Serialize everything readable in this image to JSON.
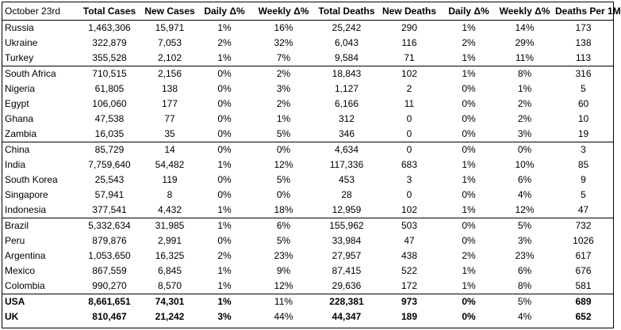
{
  "table": {
    "headers": [
      "October 23rd",
      "Total Cases",
      "New Cases",
      "Daily Δ%",
      "Weekly Δ%",
      "Total Deaths",
      "New Deaths",
      "Daily Δ%",
      "Weekly Δ%",
      "Deaths Per 1M"
    ],
    "groups": [
      [
        [
          "Russia",
          "1,463,306",
          "15,971",
          "1%",
          "16%",
          "25,242",
          "290",
          "1%",
          "14%",
          "173"
        ],
        [
          "Ukraine",
          "322,879",
          "7,053",
          "2%",
          "32%",
          "6,043",
          "116",
          "2%",
          "29%",
          "138"
        ],
        [
          "Turkey",
          "355,528",
          "2,102",
          "1%",
          "7%",
          "9,584",
          "71",
          "1%",
          "11%",
          "113"
        ]
      ],
      [
        [
          "South Africa",
          "710,515",
          "2,156",
          "0%",
          "2%",
          "18,843",
          "102",
          "1%",
          "8%",
          "316"
        ],
        [
          "Nigeria",
          "61,805",
          "138",
          "0%",
          "3%",
          "1,127",
          "2",
          "0%",
          "1%",
          "5"
        ],
        [
          "Egypt",
          "106,060",
          "177",
          "0%",
          "2%",
          "6,166",
          "11",
          "0%",
          "2%",
          "60"
        ],
        [
          "Ghana",
          "47,538",
          "77",
          "0%",
          "1%",
          "312",
          "0",
          "0%",
          "2%",
          "10"
        ],
        [
          "Zambia",
          "16,035",
          "35",
          "0%",
          "5%",
          "346",
          "0",
          "0%",
          "3%",
          "19"
        ]
      ],
      [
        [
          "China",
          "85,729",
          "14",
          "0%",
          "0%",
          "4,634",
          "0",
          "0%",
          "0%",
          "3"
        ],
        [
          "India",
          "7,759,640",
          "54,482",
          "1%",
          "12%",
          "117,336",
          "683",
          "1%",
          "10%",
          "85"
        ],
        [
          "South Korea",
          "25,543",
          "119",
          "0%",
          "5%",
          "453",
          "3",
          "1%",
          "6%",
          "9"
        ],
        [
          "Singapore",
          "57,941",
          "8",
          "0%",
          "0%",
          "28",
          "0",
          "0%",
          "4%",
          "5"
        ],
        [
          "Indonesia",
          "377,541",
          "4,432",
          "1%",
          "18%",
          "12,959",
          "102",
          "1%",
          "12%",
          "47"
        ]
      ],
      [
        [
          "Brazil",
          "5,332,634",
          "31,985",
          "1%",
          "6%",
          "155,962",
          "503",
          "0%",
          "5%",
          "732"
        ],
        [
          "Peru",
          "879,876",
          "2,991",
          "0%",
          "5%",
          "33,984",
          "47",
          "0%",
          "3%",
          "1026"
        ],
        [
          "Argentina",
          "1,053,650",
          "16,325",
          "2%",
          "23%",
          "27,957",
          "438",
          "2%",
          "23%",
          "617"
        ],
        [
          "Mexico",
          "867,559",
          "6,845",
          "1%",
          "9%",
          "87,415",
          "522",
          "1%",
          "6%",
          "676"
        ],
        [
          "Colombia",
          "990,270",
          "8,570",
          "1%",
          "12%",
          "29,636",
          "172",
          "1%",
          "8%",
          "581"
        ]
      ],
      [
        [
          "USA",
          "8,661,651",
          "74,301",
          "1%",
          "11%",
          "228,381",
          "973",
          "0%",
          "5%",
          "689"
        ],
        [
          "UK",
          "810,467",
          "21,242",
          "3%",
          "44%",
          "44,347",
          "189",
          "0%",
          "4%",
          "652"
        ]
      ]
    ],
    "bold_cells_last_group": [
      0,
      1,
      2,
      3,
      5,
      6,
      7,
      9
    ]
  }
}
